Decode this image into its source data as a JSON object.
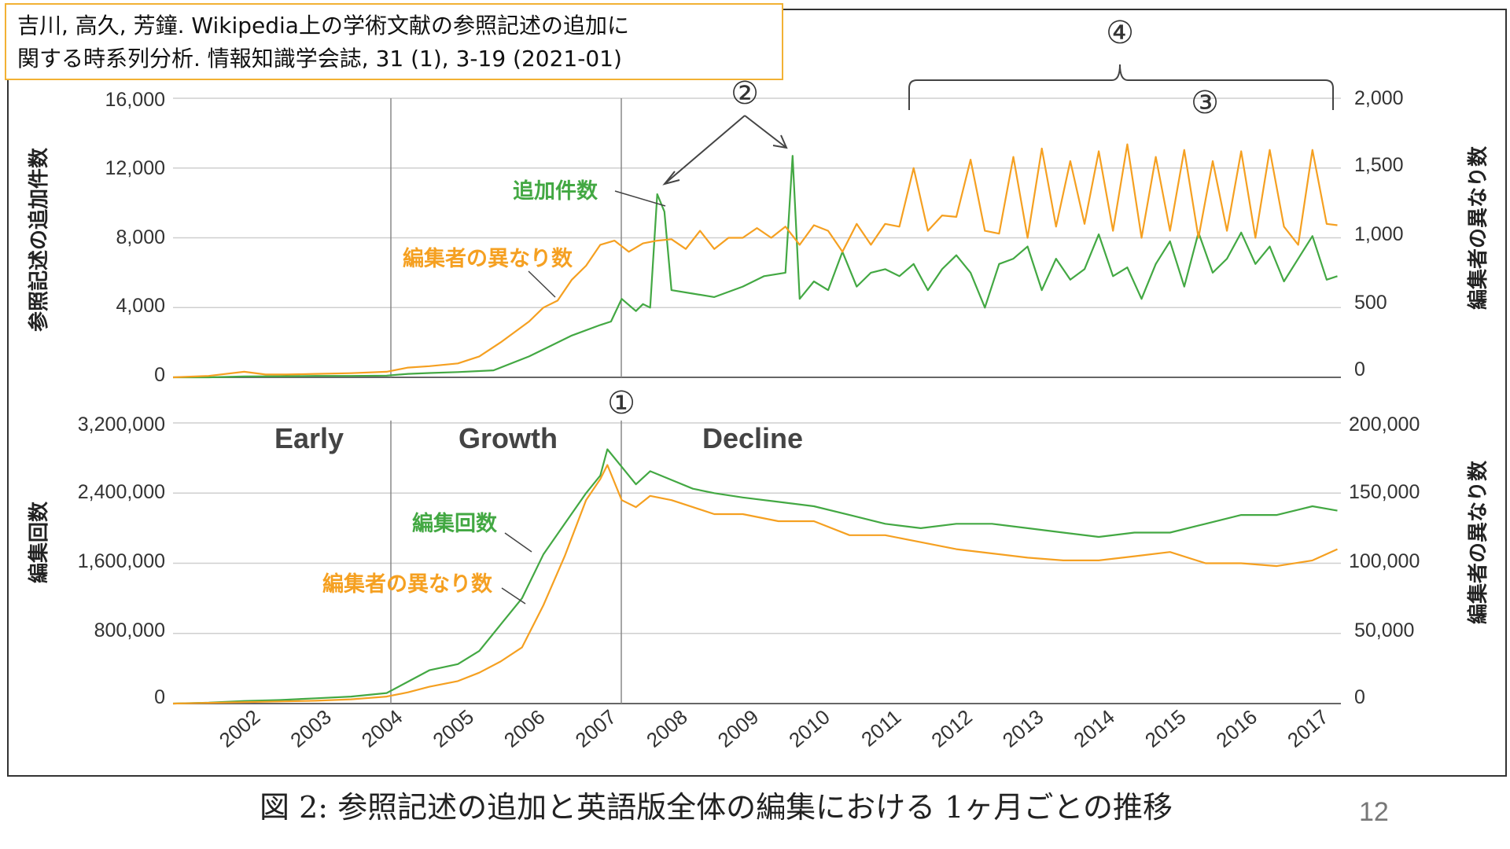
{
  "citation": {
    "line1": "吉川, 高久, 芳鐘. Wikipedia上の学術文献の参照記述の追加に",
    "line2": "関する時系列分析. 情報知識学会誌, 31 (1), 3-19 (2021-01)"
  },
  "caption": "図 2: 参照記述の追加と英語版全体の編集における 1ヶ月ごとの推移",
  "page_number": "12",
  "colors": {
    "green": "#43a843",
    "orange": "#f5a021",
    "grid": "#cfcfcf",
    "axis": "#555555"
  },
  "chart_data": [
    {
      "type": "line",
      "panel": "top",
      "ylabel_left": "参照記述の追加件数",
      "ylabel_right": "編集者の異なり数",
      "left_ticks": [
        "16,000",
        "12,000",
        "8,000",
        "4,000",
        "0"
      ],
      "right_ticks": [
        "2,000",
        "1,500",
        "1,000",
        "500",
        "0"
      ],
      "ylim_left": [
        0,
        16000
      ],
      "ylim_right": [
        0,
        2000
      ],
      "series": [
        {
          "name": "追加件数",
          "axis": "left",
          "color": "green",
          "x": [
            2001.0,
            2001.5,
            2002.0,
            2002.5,
            2003.0,
            2003.5,
            2004.0,
            2004.3,
            2004.6,
            2005.0,
            2005.5,
            2006.0,
            2006.3,
            2006.6,
            2007.0,
            2007.15,
            2007.3,
            2007.5,
            2007.6,
            2007.7,
            2007.8,
            2007.9,
            2008.0,
            2008.3,
            2008.6,
            2009.0,
            2009.3,
            2009.6,
            2009.7,
            2009.8,
            2010.0,
            2010.2,
            2010.4,
            2010.6,
            2010.8,
            2011.0,
            2011.2,
            2011.4,
            2011.6,
            2011.8,
            2012.0,
            2012.2,
            2012.4,
            2012.6,
            2012.8,
            2013.0,
            2013.2,
            2013.4,
            2013.6,
            2013.8,
            2014.0,
            2014.2,
            2014.4,
            2014.6,
            2014.8,
            2015.0,
            2015.2,
            2015.4,
            2015.6,
            2015.8,
            2016.0,
            2016.2,
            2016.4,
            2016.6,
            2016.8,
            2017.0,
            2017.2,
            2017.35
          ],
          "values": [
            0,
            0,
            50,
            60,
            80,
            80,
            100,
            200,
            250,
            300,
            400,
            1200,
            1800,
            2400,
            3000,
            3200,
            4500,
            3800,
            4200,
            4000,
            10500,
            9500,
            5000,
            4800,
            4600,
            5200,
            5800,
            6000,
            12700,
            4500,
            5500,
            5000,
            7200,
            5200,
            6000,
            6200,
            5800,
            6500,
            5000,
            6200,
            7000,
            6000,
            4000,
            6500,
            6800,
            7500,
            5000,
            6800,
            5600,
            6200,
            8200,
            5800,
            6300,
            4500,
            6500,
            7800,
            5200,
            8300,
            6000,
            6800,
            8300,
            6500,
            7500,
            5500,
            6800,
            8100,
            5600,
            5800
          ]
        },
        {
          "name": "編集者の異なり数",
          "axis": "right",
          "color": "orange",
          "x": [
            2001.0,
            2001.5,
            2002.0,
            2002.3,
            2002.6,
            2003.0,
            2003.5,
            2004.0,
            2004.3,
            2004.6,
            2005.0,
            2005.3,
            2005.6,
            2006.0,
            2006.2,
            2006.4,
            2006.6,
            2006.8,
            2007.0,
            2007.2,
            2007.4,
            2007.6,
            2007.8,
            2008.0,
            2008.2,
            2008.4,
            2008.6,
            2008.8,
            2009.0,
            2009.2,
            2009.4,
            2009.6,
            2009.8,
            2010.0,
            2010.2,
            2010.4,
            2010.6,
            2010.8,
            2011.0,
            2011.2,
            2011.4,
            2011.6,
            2011.8,
            2012.0,
            2012.2,
            2012.4,
            2012.6,
            2012.8,
            2013.0,
            2013.2,
            2013.4,
            2013.6,
            2013.8,
            2014.0,
            2014.2,
            2014.4,
            2014.6,
            2014.8,
            2015.0,
            2015.2,
            2015.4,
            2015.6,
            2015.8,
            2016.0,
            2016.2,
            2016.4,
            2016.6,
            2016.8,
            2017.0,
            2017.2,
            2017.35
          ],
          "values": [
            0,
            10,
            40,
            20,
            20,
            25,
            30,
            40,
            70,
            80,
            100,
            150,
            250,
            400,
            500,
            550,
            700,
            800,
            950,
            980,
            900,
            960,
            980,
            990,
            920,
            1050,
            920,
            1000,
            1000,
            1070,
            1000,
            1080,
            950,
            1090,
            1050,
            900,
            1100,
            950,
            1100,
            1080,
            1500,
            1050,
            1160,
            1150,
            1560,
            1050,
            1030,
            1580,
            1000,
            1640,
            1080,
            1550,
            1100,
            1620,
            1050,
            1670,
            1000,
            1580,
            1050,
            1630,
            1000,
            1550,
            1050,
            1620,
            1000,
            1630,
            1080,
            950,
            1630,
            1100,
            1090
          ]
        }
      ],
      "annotations": [
        {
          "text": "追加件数",
          "color": "green"
        },
        {
          "text": "編集者の異なり数",
          "color": "orange"
        },
        {
          "text": "②"
        },
        {
          "text": "③"
        },
        {
          "text": "④"
        }
      ]
    },
    {
      "type": "line",
      "panel": "bottom",
      "ylabel_left": "編集回数",
      "ylabel_right": "編集者の異なり数",
      "left_ticks": [
        "3,200,000",
        "2,400,000",
        "1,600,000",
        "800,000",
        "0"
      ],
      "right_ticks": [
        "200,000",
        "150,000",
        "100,000",
        "50,000",
        "0"
      ],
      "ylim_left": [
        0,
        3200000
      ],
      "ylim_right": [
        0,
        200000
      ],
      "phases": [
        "Early",
        "Growth",
        "Decline"
      ],
      "series": [
        {
          "name": "編集回数",
          "axis": "left",
          "color": "green",
          "x": [
            2001.0,
            2001.5,
            2002.0,
            2002.5,
            2003.0,
            2003.5,
            2004.0,
            2004.3,
            2004.6,
            2005.0,
            2005.3,
            2005.6,
            2005.9,
            2006.2,
            2006.5,
            2006.8,
            2007.0,
            2007.1,
            2007.3,
            2007.5,
            2007.7,
            2008.0,
            2008.3,
            2008.6,
            2009.0,
            2009.5,
            2010.0,
            2010.5,
            2011.0,
            2011.5,
            2012.0,
            2012.5,
            2013.0,
            2013.5,
            2014.0,
            2014.5,
            2015.0,
            2015.5,
            2016.0,
            2016.5,
            2017.0,
            2017.35
          ],
          "values": [
            0,
            10000,
            30000,
            40000,
            60000,
            80000,
            120000,
            250000,
            380000,
            450000,
            600000,
            900000,
            1200000,
            1700000,
            2050000,
            2400000,
            2600000,
            2900000,
            2700000,
            2500000,
            2650000,
            2550000,
            2450000,
            2400000,
            2350000,
            2300000,
            2250000,
            2150000,
            2050000,
            2000000,
            2050000,
            2050000,
            2000000,
            1950000,
            1900000,
            1950000,
            1950000,
            2050000,
            2150000,
            2150000,
            2250000,
            2200000
          ]
        },
        {
          "name": "編集者の異なり数",
          "axis": "right",
          "color": "orange",
          "x": [
            2001.0,
            2001.5,
            2002.0,
            2002.5,
            2003.0,
            2003.5,
            2004.0,
            2004.3,
            2004.6,
            2005.0,
            2005.3,
            2005.6,
            2005.9,
            2006.2,
            2006.5,
            2006.8,
            2007.0,
            2007.1,
            2007.3,
            2007.5,
            2007.7,
            2008.0,
            2008.3,
            2008.6,
            2009.0,
            2009.5,
            2010.0,
            2010.5,
            2011.0,
            2011.5,
            2012.0,
            2012.5,
            2013.0,
            2013.5,
            2014.0,
            2014.5,
            2015.0,
            2015.5,
            2016.0,
            2016.5,
            2017.0,
            2017.35
          ],
          "values": [
            0,
            500,
            1000,
            1500,
            2000,
            3000,
            5000,
            8000,
            12000,
            16000,
            22000,
            30000,
            40000,
            70000,
            105000,
            145000,
            160000,
            170000,
            145000,
            140000,
            148000,
            145000,
            140000,
            135000,
            135000,
            130000,
            130000,
            120000,
            120000,
            115000,
            110000,
            107000,
            104000,
            102000,
            102000,
            105000,
            108000,
            100000,
            100000,
            98000,
            102000,
            110000
          ]
        }
      ],
      "annotations": [
        {
          "text": "編集回数",
          "color": "green"
        },
        {
          "text": "編集者の異なり数",
          "color": "orange"
        },
        {
          "text": "①"
        }
      ]
    }
  ],
  "x_axis": {
    "tick_labels": [
      "2002",
      "2003",
      "2004",
      "2005",
      "2006",
      "2007",
      "2008",
      "2009",
      "2010",
      "2011",
      "2012",
      "2013",
      "2014",
      "2015",
      "2016",
      "2017"
    ],
    "xlim": [
      2001.0,
      2017.4
    ]
  }
}
